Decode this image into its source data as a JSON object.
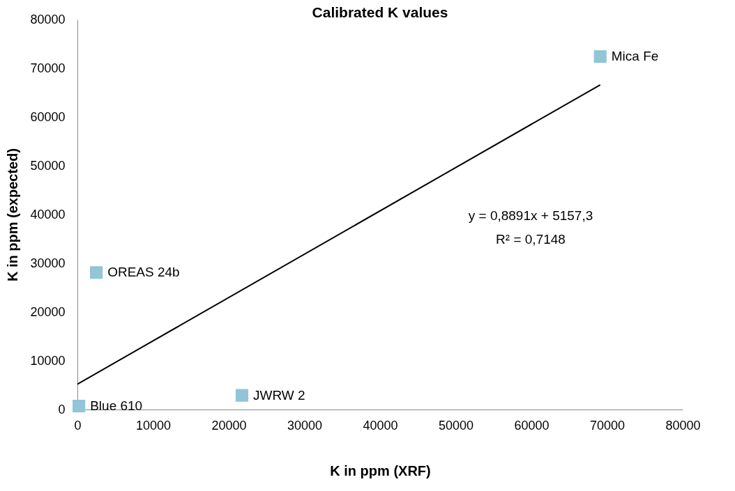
{
  "chart_data": {
    "type": "scatter",
    "title": "Calibrated K values",
    "xlabel": "K in ppm (XRF)",
    "ylabel": "K in ppm (expected)",
    "x": [
      200,
      2500,
      21750,
      69100
    ],
    "series": [
      {
        "color": "#92c5d5",
        "marker": "square",
        "values": [
          700,
          28100,
          2900,
          72400
        ]
      },
      {
        "type": "line",
        "color": "#000000",
        "x": [
          0,
          69100
        ],
        "values": [
          5200,
          66600
        ]
      }
    ],
    "xlim": [
      0,
      80000
    ],
    "xticks": [
      0,
      10000,
      20000,
      30000,
      40000,
      50000,
      60000,
      70000,
      80000
    ],
    "ylim": [
      0,
      80000
    ],
    "yticks": [
      0,
      10000,
      20000,
      30000,
      40000,
      50000,
      60000,
      70000,
      80000
    ],
    "grid": false,
    "annotations": [
      {
        "text": "Blue 610",
        "x": 200,
        "y": 700
      },
      {
        "text": "OREAS 24b",
        "x": 2500,
        "y": 28100
      },
      {
        "text": "JWRW 2",
        "x": 21750,
        "y": 2900
      },
      {
        "text": "Mica Fe",
        "x": 69100,
        "y": 72400
      },
      "y = 0,8891x + 5157,3",
      "R² = 0,7148"
    ]
  }
}
